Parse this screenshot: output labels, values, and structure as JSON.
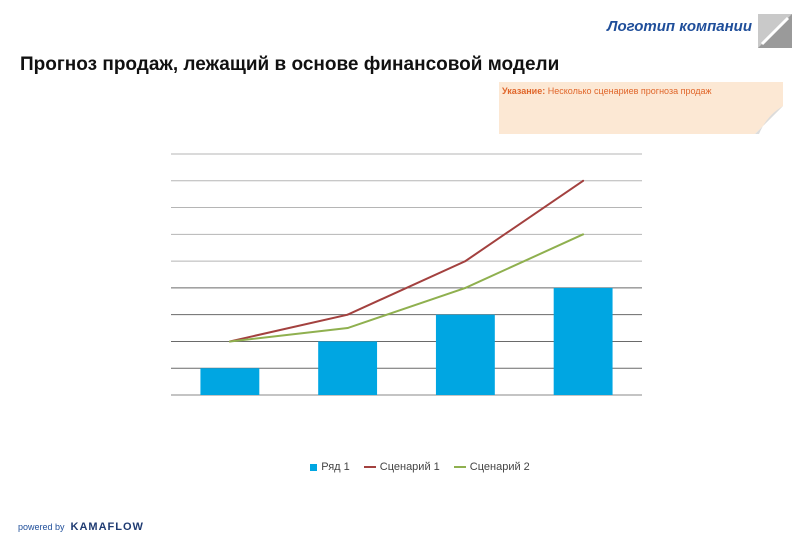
{
  "header": {
    "logo_text": "Логотип компании",
    "title": "Прогноз продаж, лежащий в основе финансовой модели"
  },
  "note": {
    "label": "Указание:",
    "text": " Несколько сценариев прогноза продаж"
  },
  "footer": {
    "powered_by": "powered by",
    "brand": "KAMAFLOW"
  },
  "colors": {
    "bars": "#00a6e2",
    "scenario1": "#a3413f",
    "scenario2": "#8fb04f",
    "grid": "#8a8a8a",
    "note_bg": "#fce8d4",
    "accent": "#1f4e9a"
  },
  "chart_data": {
    "type": "bar+line",
    "categories": [
      "",
      "",
      "",
      ""
    ],
    "ylim": [
      0,
      9
    ],
    "grid": true,
    "legend_position": "bottom",
    "series": [
      {
        "name": "Ряд 1",
        "type": "bar",
        "values": [
          1,
          2,
          3,
          4
        ]
      },
      {
        "name": "Сценарий 1",
        "type": "line",
        "values": [
          2,
          3,
          5,
          8
        ]
      },
      {
        "name": "Сценарий 2",
        "type": "line",
        "values": [
          2,
          2.5,
          4,
          6
        ]
      }
    ]
  }
}
